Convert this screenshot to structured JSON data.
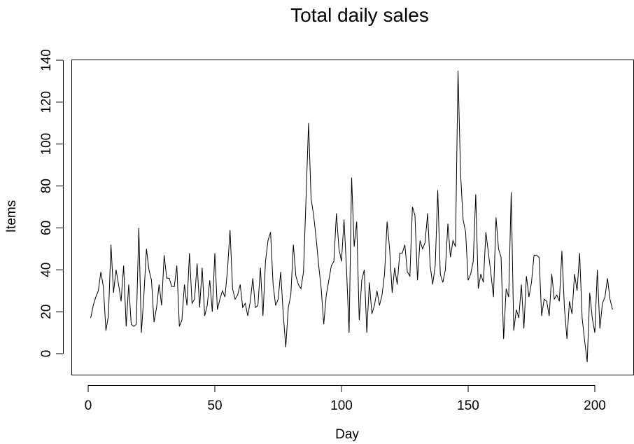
{
  "chart_data": {
    "type": "line",
    "title": "Total daily sales",
    "xlabel": "Day",
    "ylabel": "Items",
    "xlim": [
      -5,
      212
    ],
    "ylim": [
      -12,
      142
    ],
    "x_ticks": [
      0,
      50,
      100,
      150,
      200
    ],
    "y_ticks": [
      0,
      20,
      40,
      60,
      80,
      100,
      120,
      140
    ],
    "grid": false,
    "legend": "none",
    "colors": {
      "line": "#000000",
      "frame": "#000000",
      "background": "#ffffff"
    },
    "series": [
      {
        "x": [
          1,
          2,
          3,
          4,
          5,
          6,
          7,
          8,
          9,
          10,
          11,
          12,
          13,
          14,
          15,
          16,
          17,
          18,
          19,
          20,
          21,
          22,
          23,
          24,
          25,
          26,
          27,
          28,
          29,
          30,
          31,
          32,
          33,
          34,
          35,
          36,
          37,
          38,
          39,
          40,
          41,
          42,
          43,
          44,
          45,
          46,
          47,
          48,
          49,
          50,
          51,
          52,
          53,
          54,
          55,
          56,
          57,
          58,
          59,
          60,
          61,
          62,
          63,
          64,
          65,
          66,
          67,
          68,
          69,
          70,
          71,
          72,
          73,
          74,
          75,
          76,
          77,
          78,
          79,
          80,
          81,
          82,
          83,
          84,
          85,
          86,
          87,
          88,
          89,
          90,
          91,
          92,
          93,
          94,
          95,
          96,
          97,
          98,
          99,
          100,
          101,
          102,
          103,
          104,
          105,
          106,
          107,
          108,
          109,
          110,
          111,
          112,
          113,
          114,
          115,
          116,
          117,
          118,
          119,
          120,
          121,
          122,
          123,
          124,
          125,
          126,
          127,
          128,
          129,
          130,
          131,
          132,
          133,
          134,
          135,
          136,
          137,
          138,
          139,
          140,
          141,
          142,
          143,
          144,
          145,
          146,
          147,
          148,
          149,
          150,
          151,
          152,
          153,
          154,
          155,
          156,
          157,
          158,
          159,
          160,
          161,
          162,
          163,
          164,
          165,
          166,
          167,
          168,
          169,
          170,
          171,
          172,
          173,
          174,
          175,
          176,
          177,
          178,
          179,
          180,
          181,
          182,
          183,
          184,
          185,
          186,
          187,
          188,
          189,
          190,
          191,
          192,
          193,
          194,
          195,
          196,
          197,
          198,
          199,
          200,
          201,
          202,
          203,
          204,
          205,
          206,
          207
        ],
        "values": [
          17,
          23,
          27,
          30,
          39,
          32,
          11,
          18,
          52,
          29,
          40,
          33,
          25,
          42,
          13,
          33,
          14,
          13,
          14,
          60,
          10,
          28,
          50,
          40,
          35,
          15,
          22,
          33,
          23,
          47,
          36,
          36,
          32,
          32,
          42,
          13,
          16,
          33,
          23,
          48,
          24,
          26,
          43,
          22,
          41,
          18,
          23,
          35,
          20,
          48,
          21,
          26,
          30,
          27,
          40,
          59,
          31,
          26,
          28,
          33,
          22,
          24,
          18,
          25,
          36,
          22,
          23,
          41,
          18,
          44,
          54,
          58,
          33,
          23,
          26,
          39,
          19,
          3,
          22,
          28,
          52,
          37,
          33,
          31,
          39,
          74,
          110,
          74,
          66,
          55,
          42,
          31,
          14,
          28,
          35,
          42,
          44,
          67,
          50,
          44,
          64,
          40,
          10,
          84,
          51,
          63,
          16,
          35,
          40,
          10,
          34,
          19,
          23,
          30,
          23,
          28,
          38,
          63,
          50,
          29,
          41,
          33,
          48,
          48,
          52,
          39,
          37,
          70,
          66,
          35,
          54,
          50,
          53,
          67,
          42,
          33,
          42,
          78,
          38,
          34,
          40,
          62,
          46,
          54,
          51,
          135,
          86,
          64,
          58,
          35,
          38,
          44,
          76,
          31,
          38,
          34,
          58,
          48,
          38,
          27,
          65,
          50,
          46,
          7,
          31,
          27,
          77,
          11,
          21,
          17,
          33,
          12,
          37,
          27,
          34,
          47,
          47,
          46,
          18,
          26,
          25,
          18,
          38,
          26,
          28,
          25,
          49,
          22,
          7,
          25,
          19,
          38,
          30,
          48,
          17,
          6,
          -4,
          29,
          17,
          10,
          40,
          12,
          24,
          27,
          36,
          26,
          21
        ]
      }
    ]
  }
}
